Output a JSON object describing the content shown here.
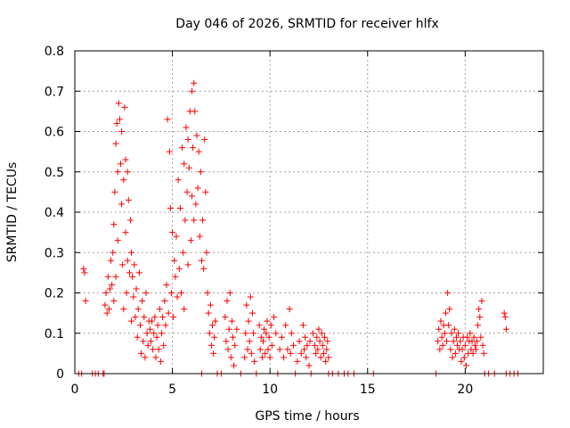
{
  "chart_data": {
    "type": "scatter",
    "title": "Day 046 of 2026, SRMTID for receiver hlfx",
    "xlabel": "GPS time / hours",
    "ylabel": "SRMTID / TECUs",
    "xlim": [
      0,
      24
    ],
    "ylim": [
      0,
      0.8
    ],
    "xticks": [
      0,
      5,
      10,
      15,
      20
    ],
    "yticks": [
      0,
      0.1,
      0.2,
      0.3,
      0.4,
      0.5,
      0.6,
      0.7,
      0.8
    ],
    "xtick_labels": [
      "0",
      "5",
      "10",
      "15",
      "20"
    ],
    "ytick_labels": [
      "0",
      "0.1",
      "0.2",
      "0.3",
      "0.4",
      "0.5",
      "0.6",
      "0.7",
      "0.8"
    ],
    "grid": true,
    "marker": "+",
    "series": [
      {
        "name": "SRMTID",
        "color": "#ff0000",
        "points": [
          [
            0.2,
            0.0
          ],
          [
            0.35,
            0.0
          ],
          [
            0.45,
            0.26
          ],
          [
            0.5,
            0.25
          ],
          [
            0.55,
            0.18
          ],
          [
            0.9,
            0.0
          ],
          [
            1.05,
            0.0
          ],
          [
            1.2,
            0.0
          ],
          [
            1.45,
            0.0
          ],
          [
            1.5,
            0.0
          ],
          [
            1.55,
            0.17
          ],
          [
            1.6,
            0.2
          ],
          [
            1.65,
            0.15
          ],
          [
            1.7,
            0.24
          ],
          [
            1.75,
            0.16
          ],
          [
            1.8,
            0.21
          ],
          [
            1.85,
            0.28
          ],
          [
            1.9,
            0.22
          ],
          [
            1.95,
            0.3
          ],
          [
            2.0,
            0.37
          ],
          [
            2.0,
            0.18
          ],
          [
            2.05,
            0.45
          ],
          [
            2.1,
            0.57
          ],
          [
            2.1,
            0.24
          ],
          [
            2.15,
            0.62
          ],
          [
            2.2,
            0.5
          ],
          [
            2.2,
            0.33
          ],
          [
            2.25,
            0.67
          ],
          [
            2.3,
            0.63
          ],
          [
            2.35,
            0.52
          ],
          [
            2.4,
            0.6
          ],
          [
            2.4,
            0.42
          ],
          [
            2.45,
            0.27
          ],
          [
            2.5,
            0.48
          ],
          [
            2.5,
            0.16
          ],
          [
            2.55,
            0.66
          ],
          [
            2.6,
            0.53
          ],
          [
            2.6,
            0.35
          ],
          [
            2.65,
            0.2
          ],
          [
            2.7,
            0.5
          ],
          [
            2.7,
            0.28
          ],
          [
            2.75,
            0.43
          ],
          [
            2.8,
            0.25
          ],
          [
            2.85,
            0.38
          ],
          [
            2.9,
            0.3
          ],
          [
            2.9,
            0.13
          ],
          [
            2.95,
            0.24
          ],
          [
            3.0,
            0.19
          ],
          [
            3.05,
            0.27
          ],
          [
            3.1,
            0.14
          ],
          [
            3.15,
            0.21
          ],
          [
            3.2,
            0.09
          ],
          [
            3.25,
            0.16
          ],
          [
            3.3,
            0.25
          ],
          [
            3.35,
            0.12
          ],
          [
            3.4,
            0.05
          ],
          [
            3.45,
            0.18
          ],
          [
            3.5,
            0.08
          ],
          [
            3.55,
            0.14
          ],
          [
            3.6,
            0.04
          ],
          [
            3.65,
            0.2
          ],
          [
            3.7,
            0.1
          ],
          [
            3.75,
            0.07
          ],
          [
            3.8,
            0.13
          ],
          [
            3.85,
            0.11
          ],
          [
            3.9,
            0.08
          ],
          [
            3.95,
            0.13
          ],
          [
            4.0,
            0.06
          ],
          [
            4.05,
            0.1
          ],
          [
            4.1,
            0.14
          ],
          [
            4.15,
            0.04
          ],
          [
            4.2,
            0.09
          ],
          [
            4.25,
            0.12
          ],
          [
            4.3,
            0.06
          ],
          [
            4.35,
            0.16
          ],
          [
            4.4,
            0.03
          ],
          [
            4.45,
            0.1
          ],
          [
            4.5,
            0.14
          ],
          [
            4.55,
            0.07
          ],
          [
            4.6,
            0.18
          ],
          [
            4.65,
            0.12
          ],
          [
            4.7,
            0.22
          ],
          [
            4.75,
            0.63
          ],
          [
            4.8,
            0.15
          ],
          [
            4.85,
            0.55
          ],
          [
            4.9,
            0.41
          ],
          [
            4.95,
            0.2
          ],
          [
            5.0,
            0.35
          ],
          [
            5.05,
            0.14
          ],
          [
            5.1,
            0.28
          ],
          [
            5.15,
            0.24
          ],
          [
            5.2,
            0.34
          ],
          [
            5.25,
            0.19
          ],
          [
            5.3,
            0.48
          ],
          [
            5.35,
            0.26
          ],
          [
            5.4,
            0.41
          ],
          [
            5.45,
            0.2
          ],
          [
            5.5,
            0.56
          ],
          [
            5.55,
            0.3
          ],
          [
            5.6,
            0.52
          ],
          [
            5.6,
            0.16
          ],
          [
            5.65,
            0.38
          ],
          [
            5.7,
            0.61
          ],
          [
            5.75,
            0.45
          ],
          [
            5.8,
            0.58
          ],
          [
            5.8,
            0.27
          ],
          [
            5.85,
            0.51
          ],
          [
            5.9,
            0.65
          ],
          [
            5.95,
            0.33
          ],
          [
            6.0,
            0.7
          ],
          [
            6.0,
            0.44
          ],
          [
            6.05,
            0.56
          ],
          [
            6.1,
            0.72
          ],
          [
            6.1,
            0.38
          ],
          [
            6.15,
            0.65
          ],
          [
            6.2,
            0.42
          ],
          [
            6.25,
            0.59
          ],
          [
            6.3,
            0.46
          ],
          [
            6.35,
            0.55
          ],
          [
            6.4,
            0.34
          ],
          [
            6.45,
            0.5
          ],
          [
            6.5,
            0.28
          ],
          [
            6.5,
            0.0
          ],
          [
            6.55,
            0.38
          ],
          [
            6.6,
            0.26
          ],
          [
            6.65,
            0.58
          ],
          [
            6.7,
            0.45
          ],
          [
            6.75,
            0.3
          ],
          [
            6.8,
            0.2
          ],
          [
            6.85,
            0.15
          ],
          [
            6.9,
            0.1
          ],
          [
            6.95,
            0.17
          ],
          [
            7.0,
            0.07
          ],
          [
            7.05,
            0.12
          ],
          [
            7.1,
            0.05
          ],
          [
            7.15,
            0.09
          ],
          [
            7.2,
            0.13
          ],
          [
            7.3,
            0.0
          ],
          [
            7.5,
            0.0
          ],
          [
            7.7,
            0.14
          ],
          [
            7.75,
            0.08
          ],
          [
            7.8,
            0.18
          ],
          [
            7.85,
            0.06
          ],
          [
            7.9,
            0.11
          ],
          [
            7.95,
            0.2
          ],
          [
            8.0,
            0.04
          ],
          [
            8.05,
            0.13
          ],
          [
            8.1,
            0.09
          ],
          [
            8.15,
            0.02
          ],
          [
            8.2,
            0.07
          ],
          [
            8.3,
            0.11
          ],
          [
            8.5,
            0.0
          ],
          [
            8.7,
            0.04
          ],
          [
            8.75,
            0.1
          ],
          [
            8.8,
            0.17
          ],
          [
            8.85,
            0.06
          ],
          [
            8.9,
            0.13
          ],
          [
            8.95,
            0.08
          ],
          [
            9.0,
            0.19
          ],
          [
            9.05,
            0.05
          ],
          [
            9.1,
            0.15
          ],
          [
            9.15,
            0.1
          ],
          [
            9.2,
            0.03
          ],
          [
            9.3,
            0.0
          ],
          [
            9.45,
            0.12
          ],
          [
            9.5,
            0.06
          ],
          [
            9.55,
            0.09
          ],
          [
            9.6,
            0.04
          ],
          [
            9.65,
            0.08
          ],
          [
            9.7,
            0.11
          ],
          [
            9.75,
            0.05
          ],
          [
            9.8,
            0.1
          ],
          [
            9.85,
            0.13
          ],
          [
            9.9,
            0.06
          ],
          [
            9.95,
            0.09
          ],
          [
            10.0,
            0.04
          ],
          [
            10.05,
            0.12
          ],
          [
            10.1,
            0.07
          ],
          [
            10.2,
            0.14
          ],
          [
            10.3,
            0.1
          ],
          [
            10.4,
            0.0
          ],
          [
            10.5,
            0.06
          ],
          [
            10.6,
            0.09
          ],
          [
            10.7,
            0.04
          ],
          [
            10.8,
            0.12
          ],
          [
            10.9,
            0.06
          ],
          [
            11.0,
            0.16
          ],
          [
            11.05,
            0.05
          ],
          [
            11.1,
            0.1
          ],
          [
            11.2,
            0.07
          ],
          [
            11.3,
            0.0
          ],
          [
            11.4,
            0.03
          ],
          [
            11.5,
            0.08
          ],
          [
            11.6,
            0.05
          ],
          [
            11.7,
            0.12
          ],
          [
            11.75,
            0.06
          ],
          [
            11.8,
            0.09
          ],
          [
            11.85,
            0.04
          ],
          [
            11.9,
            0.07
          ],
          [
            12.0,
            0.02
          ],
          [
            12.05,
            0.08
          ],
          [
            12.1,
            0.0
          ],
          [
            12.2,
            0.1
          ],
          [
            12.3,
            0.07
          ],
          [
            12.35,
            0.05
          ],
          [
            12.4,
            0.09
          ],
          [
            12.45,
            0.06
          ],
          [
            12.5,
            0.11
          ],
          [
            12.55,
            0.08
          ],
          [
            12.6,
            0.04
          ],
          [
            12.65,
            0.1
          ],
          [
            12.7,
            0.07
          ],
          [
            12.75,
            0.05
          ],
          [
            12.8,
            0.09
          ],
          [
            12.85,
            0.03
          ],
          [
            12.9,
            0.06
          ],
          [
            12.95,
            0.08
          ],
          [
            13.0,
            0.04
          ],
          [
            13.0,
            0.0
          ],
          [
            13.2,
            0.0
          ],
          [
            13.5,
            0.0
          ],
          [
            13.8,
            0.0
          ],
          [
            14.0,
            0.0
          ],
          [
            14.3,
            0.0
          ],
          [
            15.3,
            0.0
          ],
          [
            18.5,
            0.0
          ],
          [
            18.6,
            0.08
          ],
          [
            18.65,
            0.11
          ],
          [
            18.7,
            0.06
          ],
          [
            18.75,
            0.13
          ],
          [
            18.8,
            0.09
          ],
          [
            18.85,
            0.07
          ],
          [
            18.9,
            0.12
          ],
          [
            18.95,
            0.1
          ],
          [
            19.0,
            0.15
          ],
          [
            19.05,
            0.08
          ],
          [
            19.1,
            0.2
          ],
          [
            19.15,
            0.12
          ],
          [
            19.2,
            0.16
          ],
          [
            19.25,
            0.06
          ],
          [
            19.3,
            0.1
          ],
          [
            19.35,
            0.04
          ],
          [
            19.4,
            0.08
          ],
          [
            19.45,
            0.11
          ],
          [
            19.5,
            0.05
          ],
          [
            19.55,
            0.09
          ],
          [
            19.6,
            0.07
          ],
          [
            19.65,
            0.1
          ],
          [
            19.7,
            0.06
          ],
          [
            19.75,
            0.08
          ],
          [
            19.8,
            0.03
          ],
          [
            19.85,
            0.06
          ],
          [
            19.9,
            0.09
          ],
          [
            19.95,
            0.04
          ],
          [
            20.0,
            0.07
          ],
          [
            20.05,
            0.02
          ],
          [
            20.1,
            0.09
          ],
          [
            20.15,
            0.05
          ],
          [
            20.2,
            0.08
          ],
          [
            20.25,
            0.1
          ],
          [
            20.3,
            0.06
          ],
          [
            20.35,
            0.08
          ],
          [
            20.4,
            0.05
          ],
          [
            20.45,
            0.09
          ],
          [
            20.5,
            0.07
          ],
          [
            20.55,
            0.06
          ],
          [
            20.6,
            0.08
          ],
          [
            20.65,
            0.12
          ],
          [
            20.7,
            0.16
          ],
          [
            20.75,
            0.14
          ],
          [
            20.8,
            0.09
          ],
          [
            20.85,
            0.18
          ],
          [
            20.9,
            0.07
          ],
          [
            20.95,
            0.05
          ],
          [
            21.0,
            0.0
          ],
          [
            21.2,
            0.0
          ],
          [
            21.5,
            0.0
          ],
          [
            22.0,
            0.15
          ],
          [
            22.05,
            0.14
          ],
          [
            22.1,
            0.11
          ],
          [
            22.1,
            0.0
          ],
          [
            22.3,
            0.0
          ],
          [
            22.5,
            0.0
          ],
          [
            22.7,
            0.0
          ]
        ]
      }
    ]
  }
}
